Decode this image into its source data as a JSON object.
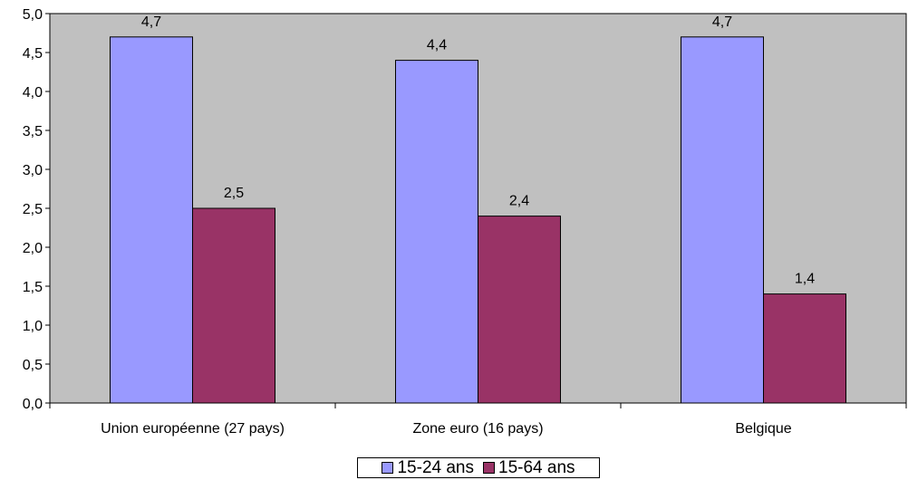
{
  "chart_data": {
    "type": "bar",
    "title": "",
    "xlabel": "",
    "ylabel": "",
    "categories": [
      "Union européenne (27 pays)",
      "Zone euro (16 pays)",
      "Belgique"
    ],
    "series": [
      {
        "name": "15-24 ans",
        "values": [
          4.7,
          4.4,
          4.7
        ],
        "labels": [
          "4,7",
          "4,4",
          "4,7"
        ],
        "color": "#9999ff"
      },
      {
        "name": "15-64 ans",
        "values": [
          2.5,
          2.4,
          1.4
        ],
        "labels": [
          "2,5",
          "2,4",
          "1,4"
        ],
        "color": "#993366"
      }
    ],
    "ylim": [
      0,
      5
    ],
    "yticks": [
      0,
      0.5,
      1,
      1.5,
      2,
      2.5,
      3,
      3.5,
      4,
      4.5,
      5
    ],
    "ytick_labels": [
      "0,0",
      "0,5",
      "1,0",
      "1,5",
      "2,0",
      "2,5",
      "3,0",
      "3,5",
      "4,0",
      "4,5",
      "5,0"
    ],
    "plot_background": "#c0c0c0",
    "grid": false,
    "legend_position": "bottom"
  }
}
